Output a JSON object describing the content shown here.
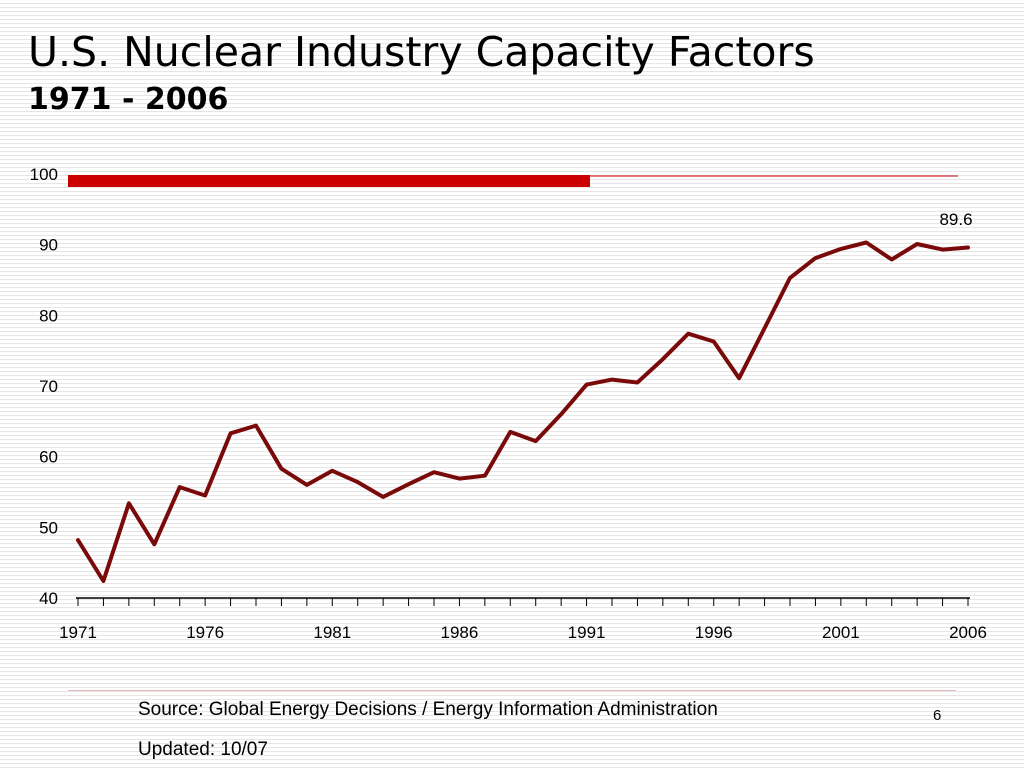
{
  "slide": {
    "title": "U.S. Nuclear Industry Capacity Factors",
    "subtitle": "1971 - 2006",
    "source": "Source: Global Energy Decisions / Energy Information Administration",
    "updated": "Updated: 10/07",
    "page_number": "6"
  },
  "colors": {
    "series_line": "#7a0a0a",
    "accent_bar": "#cc0000",
    "accent_rule": "#cc0000",
    "axis": "#000000"
  },
  "chart_data": {
    "type": "line",
    "title": "",
    "xlabel": "",
    "ylabel": "",
    "ylim": [
      40,
      100
    ],
    "yticks": [
      40,
      50,
      60,
      70,
      80,
      90,
      100
    ],
    "xlim": [
      1971,
      2006
    ],
    "xtick_labels": [
      "1971",
      "1976",
      "1981",
      "1986",
      "1991",
      "1996",
      "2001",
      "2006"
    ],
    "grid": false,
    "legend": "none",
    "x": [
      1971,
      1972,
      1973,
      1974,
      1975,
      1976,
      1977,
      1978,
      1979,
      1980,
      1981,
      1982,
      1983,
      1984,
      1985,
      1986,
      1987,
      1988,
      1989,
      1990,
      1991,
      1992,
      1993,
      1994,
      1995,
      1996,
      1997,
      1998,
      1999,
      2000,
      2001,
      2002,
      2003,
      2004,
      2005,
      2006
    ],
    "series": [
      {
        "values": [
          48.2,
          42.4,
          53.4,
          47.6,
          55.7,
          54.5,
          63.3,
          64.4,
          58.3,
          56.0,
          58.0,
          56.4,
          54.3,
          56.1,
          57.8,
          56.9,
          57.3,
          63.5,
          62.2,
          66.0,
          70.2,
          70.9,
          70.5,
          73.8,
          77.4,
          76.3,
          71.1,
          78.2,
          85.3,
          88.1,
          89.4,
          90.3,
          87.9,
          90.1,
          89.3,
          89.6
        ]
      }
    ],
    "annotations": [
      {
        "x": 2006,
        "text": "89.6"
      }
    ]
  }
}
